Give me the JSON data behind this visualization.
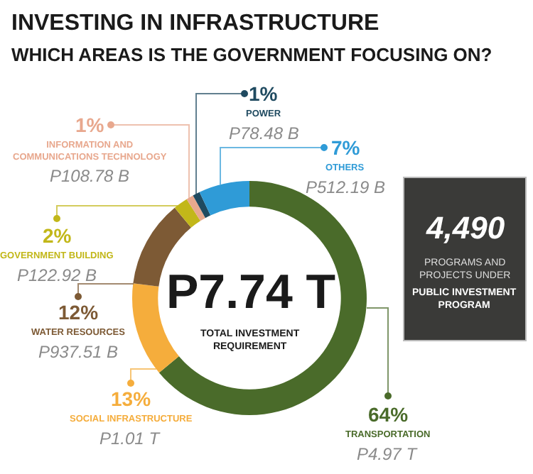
{
  "chart_data": {
    "type": "donut",
    "title": "INVESTING IN INFRASTRUCTURE",
    "subtitle": "WHICH AREAS IS THE GOVERNMENT FOCUSING ON?",
    "categories": [
      "TRANSPORTATION",
      "SOCIAL INFRASTRUCTURE",
      "WATER RESOURCES",
      "GOVERNMENT BUILDING",
      "INFORMATION AND\nCOMMUNICATIONS TECHNOLOGY",
      "POWER",
      "OTHERS"
    ],
    "values": [
      64,
      13,
      12,
      2,
      1,
      1,
      7
    ],
    "value_labels": [
      "64%",
      "13%",
      "12%",
      "2%",
      "1%",
      "1%",
      "7%"
    ],
    "colors": [
      "#4a6b2a",
      "#f5ad3c",
      "#7d5a35",
      "#c2b719",
      "#e8a88e",
      "#1f4a60",
      "#2f9bd7"
    ],
    "annotations": [
      "P7.74 T",
      "TOTAL INVESTMENT\nREQUIREMENT",
      "4,490",
      "PROGRAMS AND\nPROJECTS UNDER",
      "PUBLIC INVESTMENT\nPROGRAM",
      "P4.97 T",
      "P1.01 T",
      "P937.51 B",
      "P122.92 B",
      "P108.78 B",
      "P78.48 B",
      "P512.19 B"
    ],
    "legend": false
  }
}
